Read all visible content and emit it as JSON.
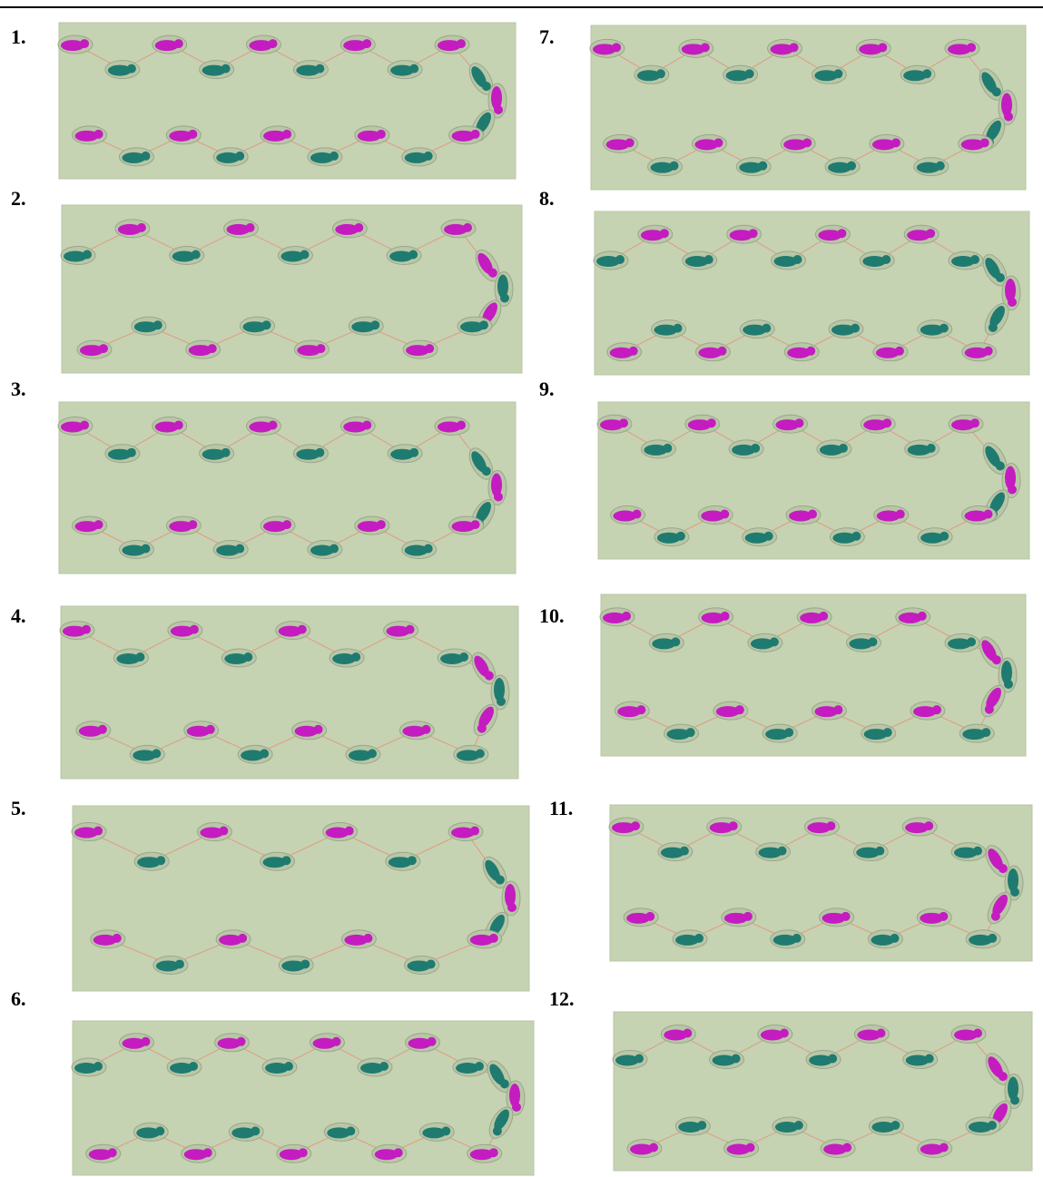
{
  "panels": [
    {
      "label": "1."
    },
    {
      "label": "2."
    },
    {
      "label": "3."
    },
    {
      "label": "4."
    },
    {
      "label": "5."
    },
    {
      "label": "6."
    },
    {
      "label": "7."
    },
    {
      "label": "8."
    },
    {
      "label": "9."
    },
    {
      "label": "10."
    },
    {
      "label": "11."
    },
    {
      "label": "12."
    }
  ]
}
